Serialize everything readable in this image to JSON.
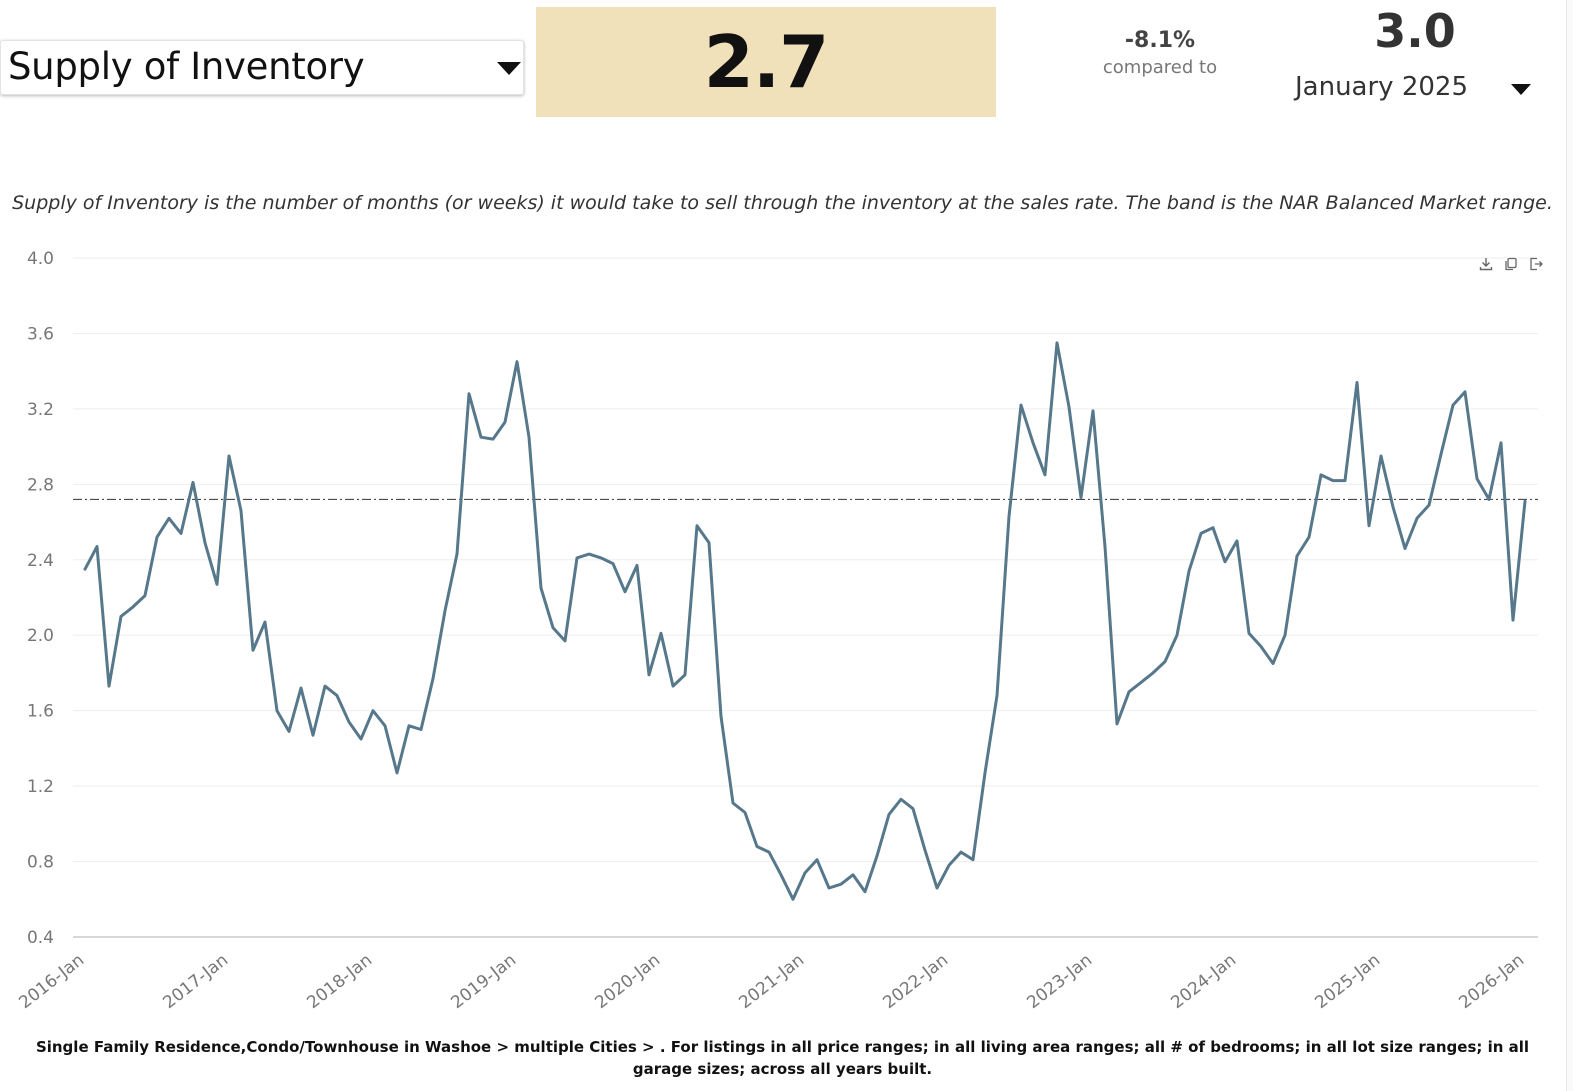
{
  "header": {
    "metric_label": "Supply of Inventory",
    "current_value": "2.7",
    "change_pct": "-8.1%",
    "compared_to_label": "compared to",
    "compare_value": "3.0",
    "compare_period": "January 2025"
  },
  "description": "Supply of Inventory is the number of months (or weeks) it would take to sell through the inventory at the sales rate. The band is the NAR Balanced Market range.",
  "toolbar": {
    "download_icon": "download-icon",
    "copy_icon": "copy-icon",
    "export_icon": "export-icon"
  },
  "footnote": "Single Family Residence,Condo/Townhouse in Washoe > multiple Cities > . For listings in all price ranges; in all living area ranges; all # of bedrooms; in all lot size ranges; in all garage sizes; across all years built.",
  "colors": {
    "line": "#56788a",
    "value_box": "#f1e1bb",
    "reference_line": "#333333",
    "grid": "#eeeeee"
  },
  "chart_data": {
    "type": "line",
    "title": "",
    "xlabel": "",
    "ylabel": "",
    "ylim": [
      0.4,
      4.0
    ],
    "yticks": [
      "4.0",
      "3.6",
      "3.2",
      "2.8",
      "2.4",
      "2.0",
      "1.6",
      "1.2",
      "0.8",
      "0.4"
    ],
    "x_tick_labels": [
      "2016-Jan",
      "2017-Jan",
      "2018-Jan",
      "2019-Jan",
      "2020-Jan",
      "2021-Jan",
      "2022-Jan",
      "2023-Jan",
      "2024-Jan",
      "2025-Jan",
      "2026-Jan"
    ],
    "grid": true,
    "reference_line": {
      "value": 2.72,
      "style": "dash-dot"
    },
    "series": [
      {
        "name": "Supply of Inventory",
        "start": "2016-Jan",
        "frequency": "monthly",
        "values": [
          2.35,
          2.47,
          1.73,
          2.1,
          2.15,
          2.21,
          2.52,
          2.62,
          2.54,
          2.81,
          2.49,
          2.27,
          2.95,
          2.66,
          1.92,
          2.07,
          1.6,
          1.49,
          1.72,
          1.47,
          1.73,
          1.68,
          1.54,
          1.45,
          1.6,
          1.52,
          1.27,
          1.52,
          1.5,
          1.77,
          2.13,
          2.43,
          3.28,
          3.05,
          3.04,
          3.13,
          3.45,
          3.05,
          2.25,
          2.04,
          1.97,
          2.41,
          2.43,
          2.41,
          2.38,
          2.23,
          2.37,
          1.79,
          2.01,
          1.73,
          1.79,
          2.58,
          2.49,
          1.57,
          1.11,
          1.06,
          0.88,
          0.85,
          0.73,
          0.6,
          0.74,
          0.81,
          0.66,
          0.68,
          0.73,
          0.64,
          0.83,
          1.05,
          1.13,
          1.08,
          0.86,
          0.66,
          0.78,
          0.85,
          0.81,
          1.27,
          1.68,
          2.63,
          3.22,
          3.02,
          2.85,
          3.55,
          3.21,
          2.73,
          3.19,
          2.47,
          1.53,
          1.7,
          1.75,
          1.8,
          1.86,
          2.0,
          2.34,
          2.54,
          2.57,
          2.39,
          2.5,
          2.01,
          1.94,
          1.85,
          2.0,
          2.42,
          2.52,
          2.85,
          2.82,
          2.82,
          3.34,
          2.58,
          2.95,
          2.68,
          2.46,
          2.62,
          2.69,
          2.96,
          3.22,
          3.29,
          2.83,
          2.72,
          3.02,
          2.08,
          2.71
        ]
      }
    ]
  }
}
